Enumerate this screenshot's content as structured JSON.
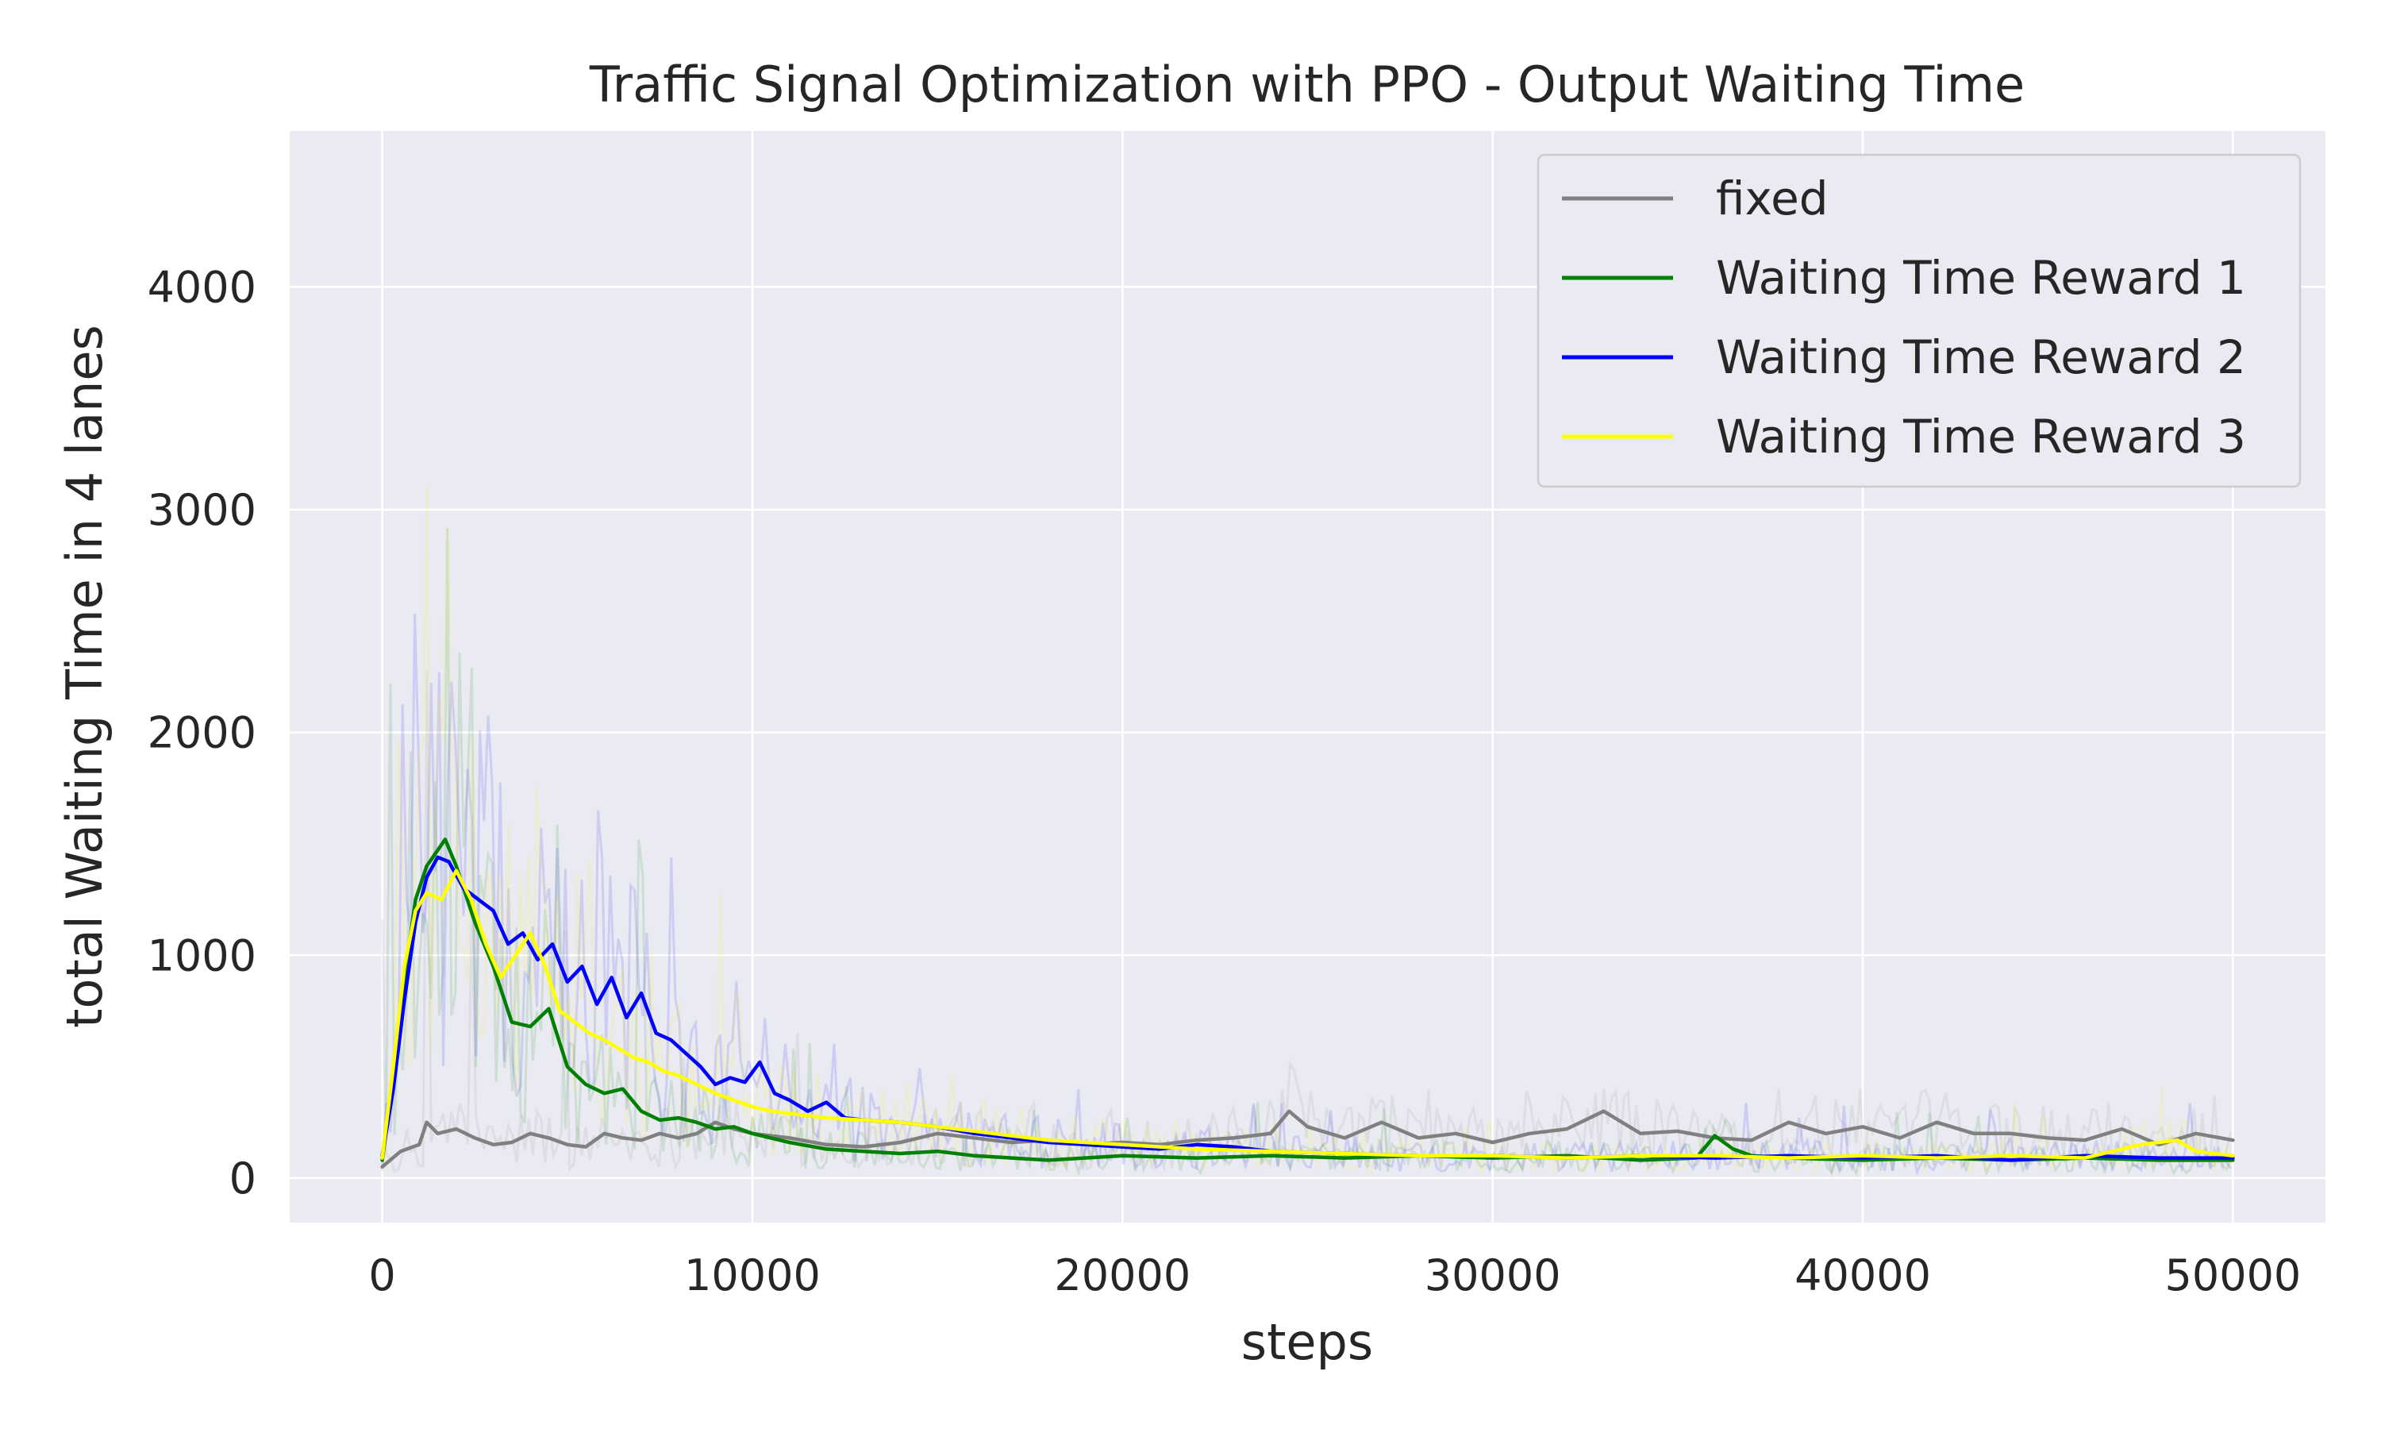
{
  "chart_data": {
    "type": "line",
    "title": "Traffic Signal Optimization with PPO - Output Waiting Time",
    "xlabel": "steps",
    "ylabel": "total Waiting Time in 4 lanes",
    "xlim": [
      -2500,
      52500
    ],
    "ylim": [
      -200,
      4700
    ],
    "xticks": [
      0,
      10000,
      20000,
      30000,
      40000,
      50000
    ],
    "yticks": [
      0,
      1000,
      2000,
      3000,
      4000
    ],
    "grid": true,
    "legend_position": "top-right",
    "series": [
      {
        "name": "fixed",
        "color": "#808080",
        "x": [
          0,
          500,
          1000,
          1200,
          1500,
          2000,
          2500,
          3000,
          3500,
          4000,
          4500,
          5000,
          5500,
          6000,
          6500,
          7000,
          7500,
          8000,
          8500,
          9000,
          9500,
          10000,
          11000,
          12000,
          13000,
          14000,
          15000,
          16000,
          17000,
          18000,
          19000,
          20000,
          21000,
          22000,
          23000,
          24000,
          24500,
          25000,
          26000,
          27000,
          28000,
          29000,
          30000,
          31000,
          32000,
          33000,
          34000,
          35000,
          36000,
          37000,
          38000,
          39000,
          40000,
          41000,
          42000,
          43000,
          44000,
          45000,
          46000,
          47000,
          48000,
          49000,
          50000
        ],
        "y": [
          50,
          120,
          150,
          250,
          200,
          220,
          180,
          150,
          160,
          200,
          180,
          150,
          140,
          200,
          180,
          170,
          200,
          180,
          200,
          250,
          220,
          200,
          180,
          150,
          140,
          160,
          200,
          180,
          160,
          170,
          150,
          160,
          150,
          170,
          180,
          200,
          300,
          230,
          180,
          250,
          180,
          200,
          160,
          200,
          220,
          300,
          200,
          210,
          180,
          170,
          250,
          200,
          230,
          180,
          250,
          200,
          200,
          180,
          170,
          220,
          150,
          200,
          170
        ]
      },
      {
        "name": "Waiting Time Reward 1",
        "color": "#008000",
        "x": [
          0,
          300,
          600,
          900,
          1200,
          1700,
          2000,
          2500,
          3000,
          3500,
          4000,
          4500,
          5000,
          5500,
          6000,
          6500,
          7000,
          7500,
          8000,
          8500,
          9000,
          9500,
          10000,
          11000,
          12000,
          13000,
          14000,
          15000,
          16000,
          17000,
          18000,
          20000,
          22000,
          24000,
          26000,
          28000,
          30000,
          32000,
          34000,
          35500,
          36000,
          36500,
          37000,
          38000,
          40000,
          42000,
          44000,
          46000,
          48000,
          50000
        ],
        "y": [
          80,
          450,
          900,
          1250,
          1400,
          1520,
          1400,
          1150,
          950,
          700,
          680,
          760,
          500,
          420,
          380,
          400,
          300,
          260,
          270,
          250,
          220,
          230,
          200,
          160,
          130,
          120,
          110,
          120,
          100,
          90,
          80,
          100,
          90,
          100,
          90,
          100,
          90,
          100,
          80,
          90,
          190,
          130,
          100,
          90,
          80,
          90,
          80,
          90,
          80,
          80
        ]
      },
      {
        "name": "Waiting Time Reward 2",
        "color": "#0000ff",
        "x": [
          0,
          300,
          600,
          900,
          1200,
          1500,
          1800,
          2200,
          2600,
          3000,
          3400,
          3800,
          4200,
          4600,
          5000,
          5400,
          5800,
          6200,
          6600,
          7000,
          7400,
          7800,
          8200,
          8600,
          9000,
          9400,
          9800,
          10200,
          10600,
          11000,
          11500,
          12000,
          12500,
          13000,
          14000,
          15000,
          16000,
          17000,
          18000,
          19000,
          20000,
          21000,
          22000,
          23000,
          24000,
          26000,
          28000,
          30000,
          32000,
          34000,
          36000,
          38000,
          40000,
          42000,
          44000,
          46000,
          48000,
          50000
        ],
        "y": [
          100,
          400,
          800,
          1150,
          1350,
          1440,
          1420,
          1300,
          1250,
          1200,
          1050,
          1100,
          980,
          1050,
          880,
          950,
          780,
          900,
          720,
          830,
          650,
          620,
          560,
          500,
          420,
          450,
          430,
          520,
          380,
          350,
          300,
          340,
          270,
          260,
          250,
          230,
          200,
          180,
          160,
          150,
          140,
          130,
          150,
          140,
          120,
          110,
          100,
          100,
          90,
          100,
          90,
          100,
          90,
          100,
          80,
          100,
          90,
          90
        ]
      },
      {
        "name": "Waiting Time Reward 3",
        "color": "#ffff00",
        "x": [
          0,
          300,
          600,
          900,
          1200,
          1600,
          2000,
          2400,
          2800,
          3200,
          3600,
          4000,
          4400,
          4800,
          5200,
          5600,
          6000,
          6400,
          6800,
          7200,
          7600,
          8000,
          8500,
          9000,
          9500,
          10000,
          10500,
          11000,
          12000,
          13000,
          14000,
          15000,
          16000,
          17000,
          18000,
          20000,
          22000,
          24000,
          26000,
          28000,
          30000,
          32000,
          34000,
          36000,
          38000,
          40000,
          42000,
          44000,
          46000,
          47500,
          48500,
          49000,
          50000
        ],
        "y": [
          90,
          500,
          950,
          1200,
          1280,
          1250,
          1380,
          1250,
          1050,
          900,
          1000,
          1100,
          950,
          750,
          700,
          650,
          620,
          580,
          540,
          520,
          480,
          460,
          420,
          380,
          350,
          320,
          300,
          290,
          270,
          260,
          250,
          230,
          210,
          190,
          170,
          150,
          130,
          120,
          110,
          100,
          100,
          90,
          100,
          100,
          90,
          100,
          90,
          100,
          90,
          150,
          170,
          120,
          100
        ]
      }
    ]
  }
}
